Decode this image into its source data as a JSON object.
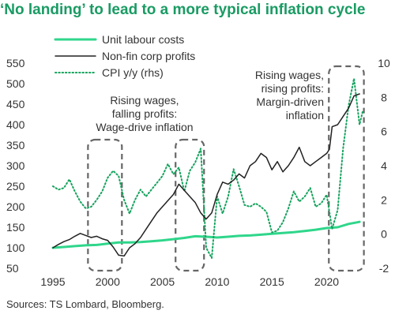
{
  "title": "‘No landing’ to lead to a more typical inflation cycle",
  "source": "Sources: TS Lombard, Bloomberg.",
  "colors": {
    "title": "#1a9b63",
    "unit_labour": "#2fd68b",
    "profits": "#222222",
    "cpi": "#16a35e",
    "box": "#666666",
    "text": "#333333"
  },
  "chart_data": {
    "type": "line",
    "x_ticks": [
      1995,
      2000,
      2005,
      2010,
      2015,
      2020
    ],
    "x_range": [
      1995,
      2023.5
    ],
    "y_left": {
      "range": [
        50,
        550
      ],
      "ticks": [
        50,
        100,
        150,
        200,
        250,
        300,
        350,
        400,
        450,
        500,
        550
      ]
    },
    "y_right": {
      "range": [
        -2,
        10
      ],
      "ticks": [
        -2,
        0,
        2,
        4,
        6,
        8,
        10
      ]
    },
    "grid": false,
    "legend_position": "top-left",
    "legend": [
      {
        "label": "Unit labour costs",
        "series": "unit_labour"
      },
      {
        "label": "Non-fin corp profits",
        "series": "profits"
      },
      {
        "label": "CPI y/y (rhs)",
        "series": "cpi"
      }
    ],
    "series": [
      {
        "key": "unit_labour",
        "name": "Unit labour costs",
        "axis": "left",
        "style": "solid",
        "points": [
          [
            1995,
            100
          ],
          [
            1996,
            102
          ],
          [
            1997,
            104
          ],
          [
            1998,
            106
          ],
          [
            1999,
            107
          ],
          [
            2000,
            110
          ],
          [
            2001,
            113
          ],
          [
            2002,
            113
          ],
          [
            2003,
            114
          ],
          [
            2004,
            116
          ],
          [
            2005,
            118
          ],
          [
            2006,
            121
          ],
          [
            2007,
            124
          ],
          [
            2008,
            128
          ],
          [
            2009,
            127
          ],
          [
            2010,
            125
          ],
          [
            2011,
            127
          ],
          [
            2012,
            129
          ],
          [
            2013,
            130
          ],
          [
            2014,
            132
          ],
          [
            2015,
            134
          ],
          [
            2016,
            136
          ],
          [
            2017,
            138
          ],
          [
            2018,
            141
          ],
          [
            2019,
            144
          ],
          [
            2020,
            148
          ],
          [
            2021,
            150
          ],
          [
            2022,
            158
          ],
          [
            2023,
            163
          ]
        ]
      },
      {
        "key": "profits",
        "name": "Non-fin corp profits",
        "axis": "left",
        "style": "solid",
        "points": [
          [
            1995,
            100
          ],
          [
            1995.5,
            108
          ],
          [
            1996,
            115
          ],
          [
            1996.5,
            120
          ],
          [
            1997,
            128
          ],
          [
            1997.5,
            135
          ],
          [
            1998,
            130
          ],
          [
            1998.5,
            125
          ],
          [
            1999,
            128
          ],
          [
            1999.5,
            122
          ],
          [
            2000,
            118
          ],
          [
            2000.5,
            102
          ],
          [
            2001,
            82
          ],
          [
            2001.5,
            80
          ],
          [
            2002,
            100
          ],
          [
            2002.5,
            110
          ],
          [
            2003,
            125
          ],
          [
            2003.5,
            145
          ],
          [
            2004,
            165
          ],
          [
            2004.5,
            185
          ],
          [
            2005,
            200
          ],
          [
            2005.5,
            215
          ],
          [
            2006,
            230
          ],
          [
            2006.5,
            255
          ],
          [
            2007,
            240
          ],
          [
            2007.5,
            225
          ],
          [
            2008,
            210
          ],
          [
            2008.5,
            185
          ],
          [
            2009,
            170
          ],
          [
            2009.5,
            185
          ],
          [
            2010,
            230
          ],
          [
            2010.5,
            260
          ],
          [
            2011,
            255
          ],
          [
            2011.5,
            265
          ],
          [
            2012,
            280
          ],
          [
            2012.5,
            270
          ],
          [
            2013,
            300
          ],
          [
            2013.5,
            310
          ],
          [
            2014,
            330
          ],
          [
            2014.5,
            320
          ],
          [
            2015,
            290
          ],
          [
            2015.5,
            310
          ],
          [
            2016,
            285
          ],
          [
            2016.5,
            300
          ],
          [
            2017,
            320
          ],
          [
            2017.5,
            345
          ],
          [
            2018,
            310
          ],
          [
            2018.5,
            300
          ],
          [
            2019,
            310
          ],
          [
            2019.5,
            320
          ],
          [
            2020,
            330
          ],
          [
            2020.25,
            340
          ],
          [
            2020.5,
            395
          ],
          [
            2021,
            400
          ],
          [
            2021.5,
            420
          ],
          [
            2022,
            440
          ],
          [
            2022.5,
            470
          ],
          [
            2023,
            475
          ]
        ]
      },
      {
        "key": "cpi",
        "name": "CPI y/y (rhs)",
        "axis": "right",
        "style": "dotted",
        "points": [
          [
            1995,
            2.8
          ],
          [
            1995.5,
            2.6
          ],
          [
            1996,
            2.7
          ],
          [
            1996.5,
            3.2
          ],
          [
            1997,
            2.5
          ],
          [
            1997.5,
            1.9
          ],
          [
            1998,
            1.5
          ],
          [
            1998.5,
            1.6
          ],
          [
            1999,
            2.0
          ],
          [
            1999.5,
            2.5
          ],
          [
            2000,
            3.3
          ],
          [
            2000.5,
            3.7
          ],
          [
            2001,
            3.4
          ],
          [
            2001.5,
            2.0
          ],
          [
            2002,
            1.2
          ],
          [
            2002.5,
            2.0
          ],
          [
            2003,
            2.6
          ],
          [
            2003.5,
            2.2
          ],
          [
            2004,
            2.6
          ],
          [
            2004.5,
            3.0
          ],
          [
            2005,
            3.4
          ],
          [
            2005.5,
            4.1
          ],
          [
            2006,
            3.5
          ],
          [
            2006.5,
            3.9
          ],
          [
            2007,
            2.5
          ],
          [
            2007.5,
            3.7
          ],
          [
            2008,
            4.2
          ],
          [
            2008.5,
            5.0
          ],
          [
            2009,
            -0.8
          ],
          [
            2009.5,
            -1.4
          ],
          [
            2010,
            2.2
          ],
          [
            2010.5,
            1.2
          ],
          [
            2011,
            2.2
          ],
          [
            2011.5,
            3.8
          ],
          [
            2012,
            2.8
          ],
          [
            2012.5,
            1.7
          ],
          [
            2013,
            1.6
          ],
          [
            2013.5,
            1.8
          ],
          [
            2014,
            1.6
          ],
          [
            2014.5,
            1.3
          ],
          [
            2015,
            0.1
          ],
          [
            2015.5,
            0.2
          ],
          [
            2016,
            0.7
          ],
          [
            2016.5,
            1.5
          ],
          [
            2017,
            2.5
          ],
          [
            2017.5,
            1.9
          ],
          [
            2018,
            2.2
          ],
          [
            2018.5,
            2.7
          ],
          [
            2019,
            1.6
          ],
          [
            2019.5,
            1.8
          ],
          [
            2020,
            2.3
          ],
          [
            2020.5,
            0.3
          ],
          [
            2021,
            1.4
          ],
          [
            2021.5,
            5.0
          ],
          [
            2022,
            7.5
          ],
          [
            2022.5,
            9.1
          ],
          [
            2023,
            6.4
          ],
          [
            2023.3,
            7.2
          ]
        ]
      }
    ],
    "annotations": [
      {
        "lines": [
          "Rising wages,",
          "falling profits:",
          "Wage-drive inflation"
        ],
        "box_x": [
          1998.2,
          2001.3
        ]
      },
      {
        "lines": [],
        "box_x": [
          2006.2,
          2008.8
        ]
      },
      {
        "lines": [
          "Rising wages,",
          "rising profits:",
          "Margin-driven",
          "inflation"
        ],
        "box_x": [
          2020.2,
          2023.4
        ]
      }
    ]
  }
}
